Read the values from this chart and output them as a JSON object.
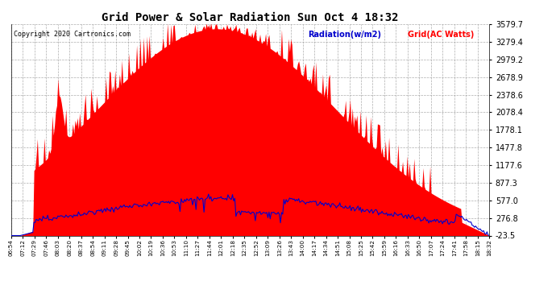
{
  "title": "Grid Power & Solar Radiation Sun Oct 4 18:32",
  "copyright": "Copyright 2020 Cartronics.com",
  "legend_radiation": "Radiation(w/m2)",
  "legend_grid": "Grid(AC Watts)",
  "yticks": [
    3579.7,
    3279.4,
    2979.2,
    2678.9,
    2378.6,
    2078.4,
    1778.1,
    1477.8,
    1177.6,
    877.3,
    577.0,
    276.8,
    -23.5
  ],
  "ymin": -23.5,
  "ymax": 3579.7,
  "background_color": "#ffffff",
  "plot_bg_color": "#ffffff",
  "grid_color": "#999999",
  "fill_color": "#ff0000",
  "line_color": "#0000cc",
  "title_color": "#000000",
  "copyright_color": "#000000",
  "radiation_label_color": "#0000cc",
  "grid_label_color": "#ff0000",
  "xtick_labels": [
    "06:54",
    "07:12",
    "07:29",
    "07:46",
    "08:03",
    "08:20",
    "08:37",
    "08:54",
    "09:11",
    "09:28",
    "09:45",
    "10:02",
    "10:19",
    "10:36",
    "10:53",
    "11:10",
    "11:27",
    "11:44",
    "12:01",
    "12:18",
    "12:35",
    "12:52",
    "13:09",
    "13:26",
    "13:43",
    "14:00",
    "14:17",
    "14:34",
    "14:51",
    "15:08",
    "15:25",
    "15:42",
    "15:59",
    "16:16",
    "16:33",
    "16:50",
    "17:07",
    "17:24",
    "17:41",
    "17:58",
    "18:15",
    "18:32"
  ]
}
